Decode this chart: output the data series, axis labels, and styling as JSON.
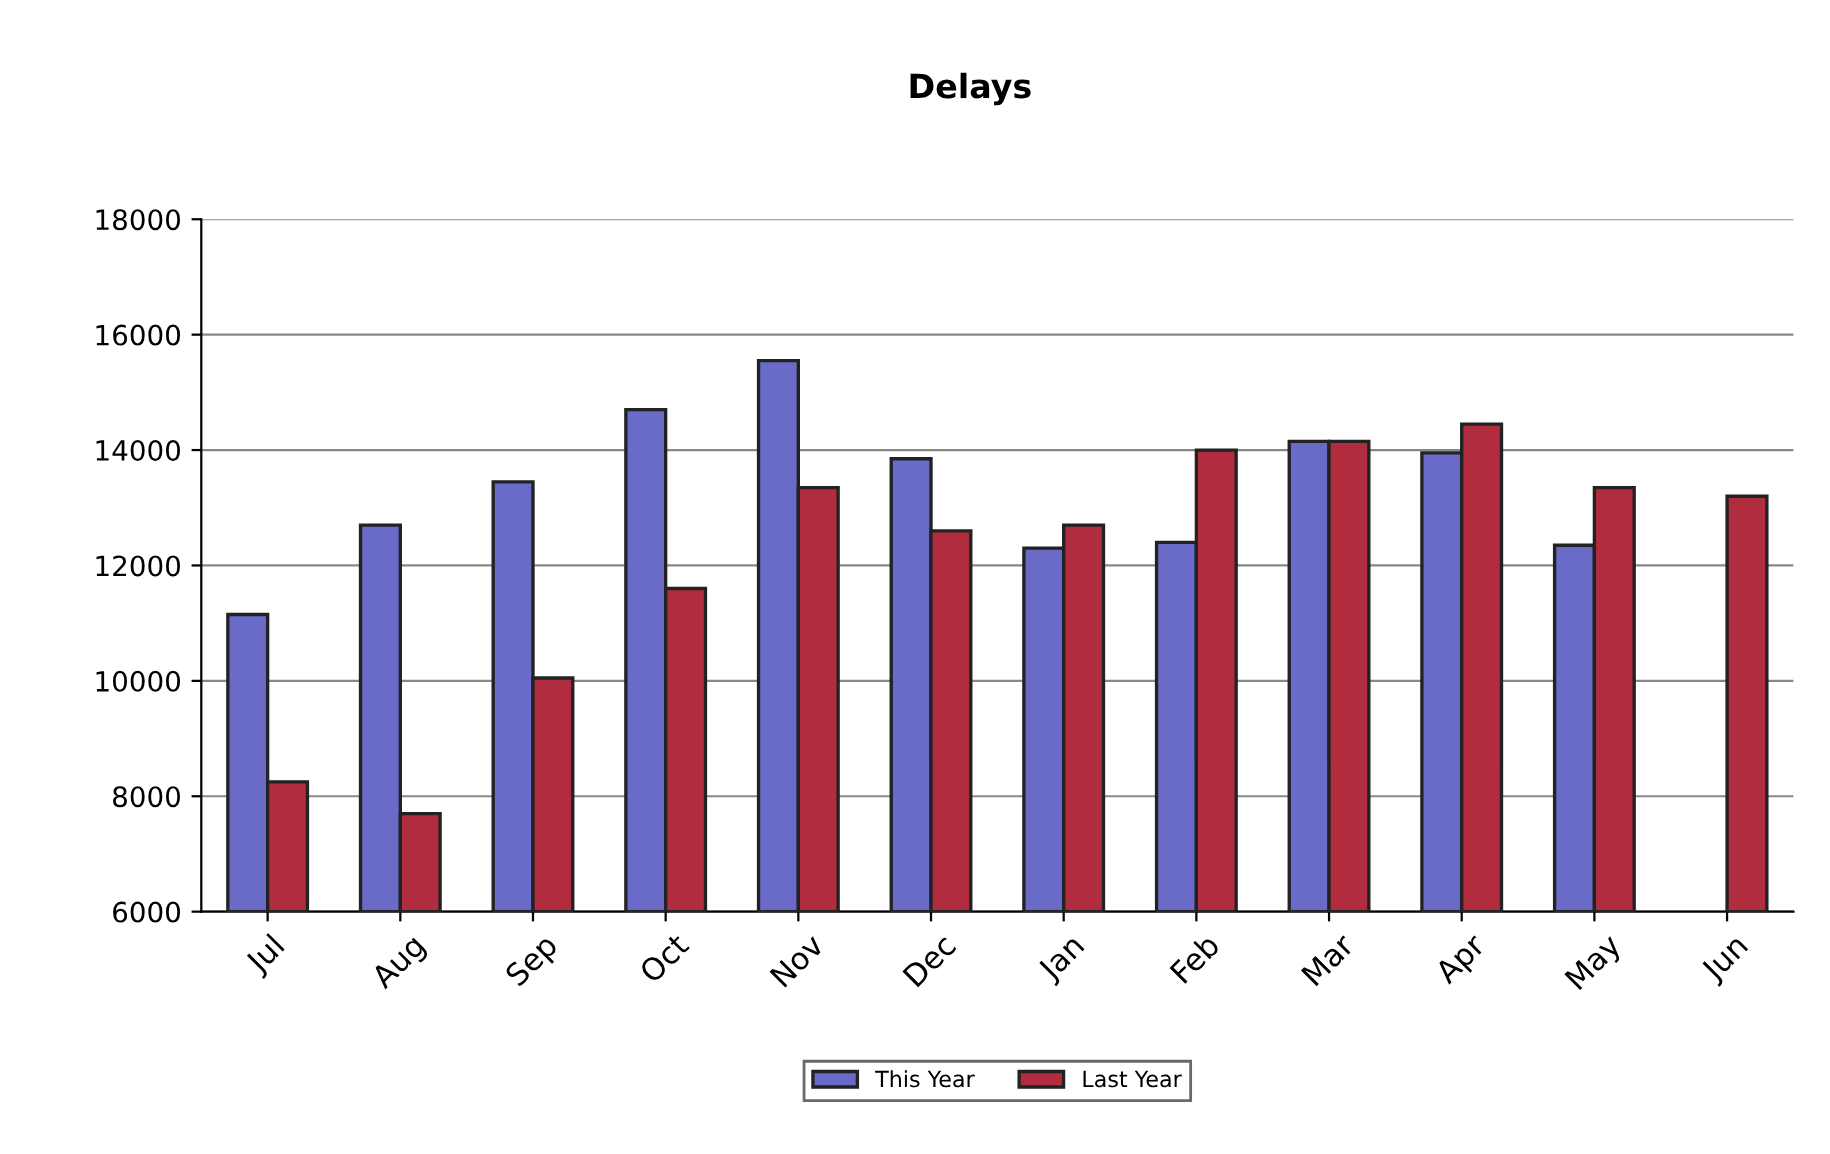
{
  "chart_data": {
    "type": "bar",
    "title": "Delays",
    "categories": [
      "Jul",
      "Aug",
      "Sep",
      "Oct",
      "Nov",
      "Dec",
      "Jan",
      "Feb",
      "Mar",
      "Apr",
      "May",
      "Jun"
    ],
    "series": [
      {
        "name": "This Year",
        "color": "#6a6ac8",
        "values": [
          11150,
          12700,
          13450,
          14700,
          15550,
          13850,
          12300,
          12400,
          14150,
          13950,
          12350,
          null
        ]
      },
      {
        "name": "Last Year",
        "color": "#b02c3e",
        "values": [
          8250,
          7700,
          10050,
          11600,
          13350,
          12600,
          12700,
          14000,
          14150,
          14450,
          13350,
          13200
        ]
      }
    ],
    "ylim": [
      6000,
      18000
    ],
    "yticks": [
      6000,
      8000,
      10000,
      12000,
      14000,
      16000,
      18000
    ],
    "grid": "y",
    "legend": "bottom"
  }
}
